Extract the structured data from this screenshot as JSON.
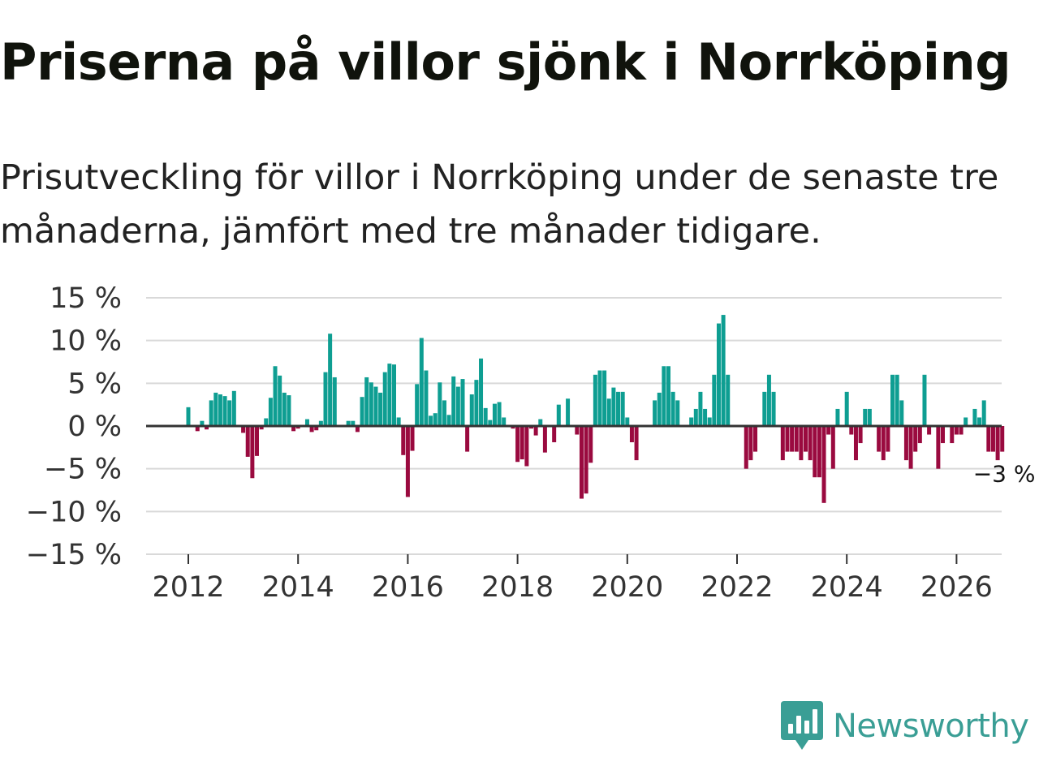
{
  "header": {
    "title": "Priserna på villor sjönk i Norrköping",
    "subtitle": "Prisutveckling för villor i Norrköping under de senaste tre månaderna, jämfört med tre månader tidigare."
  },
  "brand": {
    "name": "Newsworthy"
  },
  "colors": {
    "positive": "#0e9e92",
    "negative": "#9a0a3f",
    "grid": "#d9d9d9",
    "zero": "#333333"
  },
  "chart_data": {
    "type": "bar",
    "title": "Priserna på villor sjönk i Norrköping",
    "xlabel": "",
    "ylabel": "",
    "ylim": [
      -15,
      15
    ],
    "yticks": [
      15,
      10,
      5,
      0,
      -5,
      -10,
      -15
    ],
    "ytick_labels": [
      "15 %",
      "10 %",
      "5 %",
      "0 %",
      "−5 %",
      "−10 %",
      "−15 %"
    ],
    "xticks": [
      2012,
      2014,
      2016,
      2018,
      2020,
      2022,
      2024,
      2026
    ],
    "xtick_labels": [
      "2012",
      "2014",
      "2016",
      "2018",
      "2020",
      "2022",
      "2024",
      "2026"
    ],
    "start": "2012-01",
    "unit": "%",
    "last_value_label": "−3 %",
    "values": [
      2.2,
      0,
      -0.6,
      0.6,
      -0.4,
      3,
      3.9,
      3.7,
      3.5,
      3,
      4.1,
      0,
      -0.8,
      -3.6,
      -6.1,
      -3.5,
      -0.4,
      0.9,
      3.3,
      7,
      5.9,
      3.9,
      3.6,
      -0.6,
      -0.3,
      0,
      0.8,
      -0.7,
      -0.5,
      0.6,
      6.3,
      10.8,
      5.7,
      0,
      0,
      0.6,
      0.6,
      -0.7,
      3.4,
      5.7,
      5.1,
      4.6,
      3.9,
      6.3,
      7.3,
      7.2,
      1,
      -3.4,
      -8.3,
      -2.9,
      4.9,
      10.3,
      6.5,
      1.2,
      1.5,
      5.1,
      3,
      1.3,
      5.8,
      4.6,
      5.5,
      -3,
      3.7,
      5.4,
      7.9,
      2.1,
      0.7,
      2.6,
      2.8,
      1,
      0,
      -0.3,
      -4.2,
      -3.9,
      -4.7,
      -0.3,
      -1.1,
      0.8,
      -3.1,
      0,
      -1.9,
      2.5,
      0,
      3.2,
      0,
      -1,
      -8.5,
      -7.9,
      -4.3,
      6,
      6.5,
      6.5,
      3.2,
      4.5,
      4,
      4,
      1,
      -1.9,
      -4,
      0,
      0,
      0,
      3,
      3.9,
      7,
      7,
      4,
      3,
      0,
      0,
      1,
      2,
      4,
      2,
      1,
      6,
      12,
      13,
      6,
      0,
      0,
      0,
      -5,
      -4,
      -3,
      0,
      4,
      6,
      4,
      0,
      -4,
      -3,
      -3,
      -3,
      -4,
      -3,
      -4,
      -6,
      -6,
      -9,
      -1,
      -5,
      2,
      0,
      4,
      -1,
      -4,
      -2,
      2,
      2,
      0,
      -3,
      -4,
      -3,
      6,
      6,
      3,
      -4,
      -5,
      -3,
      -2,
      6,
      -1,
      0,
      -5,
      -2,
      0,
      -2,
      -1,
      -1,
      1,
      0,
      2,
      1,
      3,
      -3,
      -3,
      -4,
      -3
    ]
  }
}
